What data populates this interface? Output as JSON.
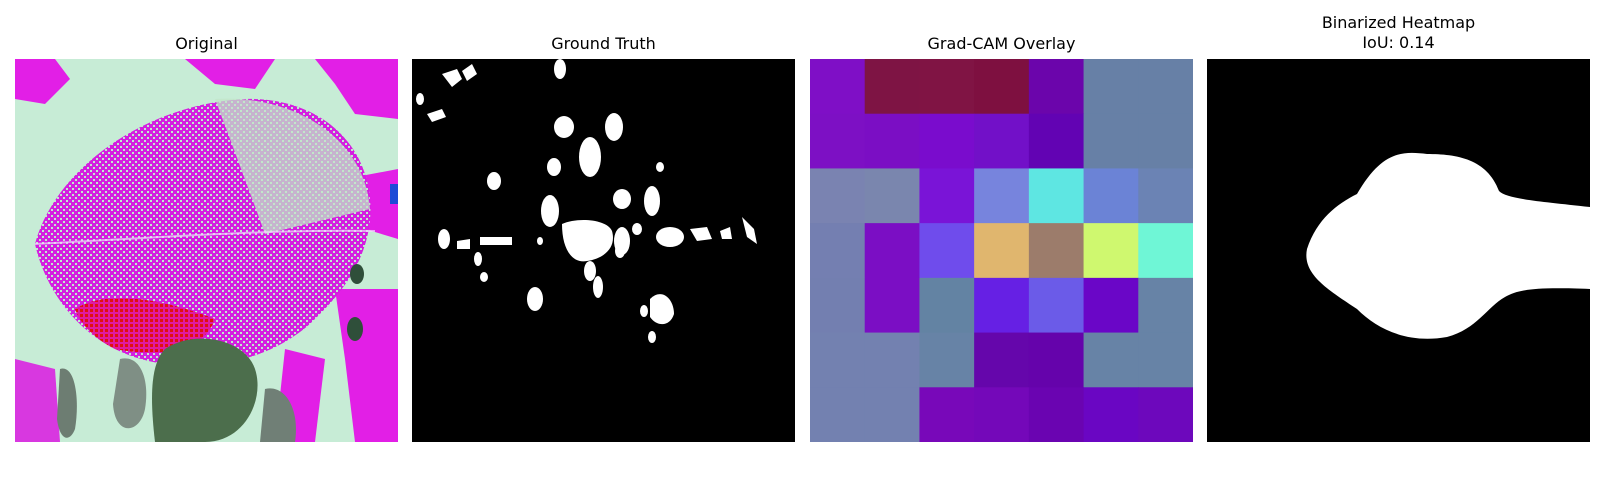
{
  "panels": [
    {
      "title": "Original"
    },
    {
      "title": "Ground Truth"
    },
    {
      "title": "Grad-CAM Overlay"
    },
    {
      "title": "Binarized Heatmap",
      "subtitle": "IoU: 0.14"
    }
  ],
  "gradcam_grid": [
    [
      "#7f0fc6",
      "#7e1444",
      "#801444",
      "#7e1040",
      "#6b05ab",
      "#6780a6",
      "#6780a6"
    ],
    [
      "#7d10c4",
      "#7b0ec4",
      "#7a0ccd",
      "#7210c8",
      "#6203b3",
      "#6780a6",
      "#6780a6"
    ],
    [
      "#7a83b1",
      "#7a86ae",
      "#7a14d7",
      "#7784dd",
      "#5ee6e2",
      "#6b83d6",
      "#6b83b4"
    ],
    [
      "#747fb1",
      "#7b0ec4",
      "#6f4cec",
      "#e0b66e",
      "#9c7c6b",
      "#cff86f",
      "#6ff6d6"
    ],
    [
      "#737fb0",
      "#7b0ec4",
      "#6383a3",
      "#6620e4",
      "#6b5be8",
      "#6a06c7",
      "#6783a6"
    ],
    [
      "#7381b0",
      "#7381b0",
      "#6783a6",
      "#6506ab",
      "#6503ab",
      "#6783a6",
      "#6783a6"
    ],
    [
      "#7381b0",
      "#7381b0",
      "#7808b9",
      "#7408b9",
      "#6a04b1",
      "#6a06c3",
      "#6d08bc"
    ]
  ]
}
